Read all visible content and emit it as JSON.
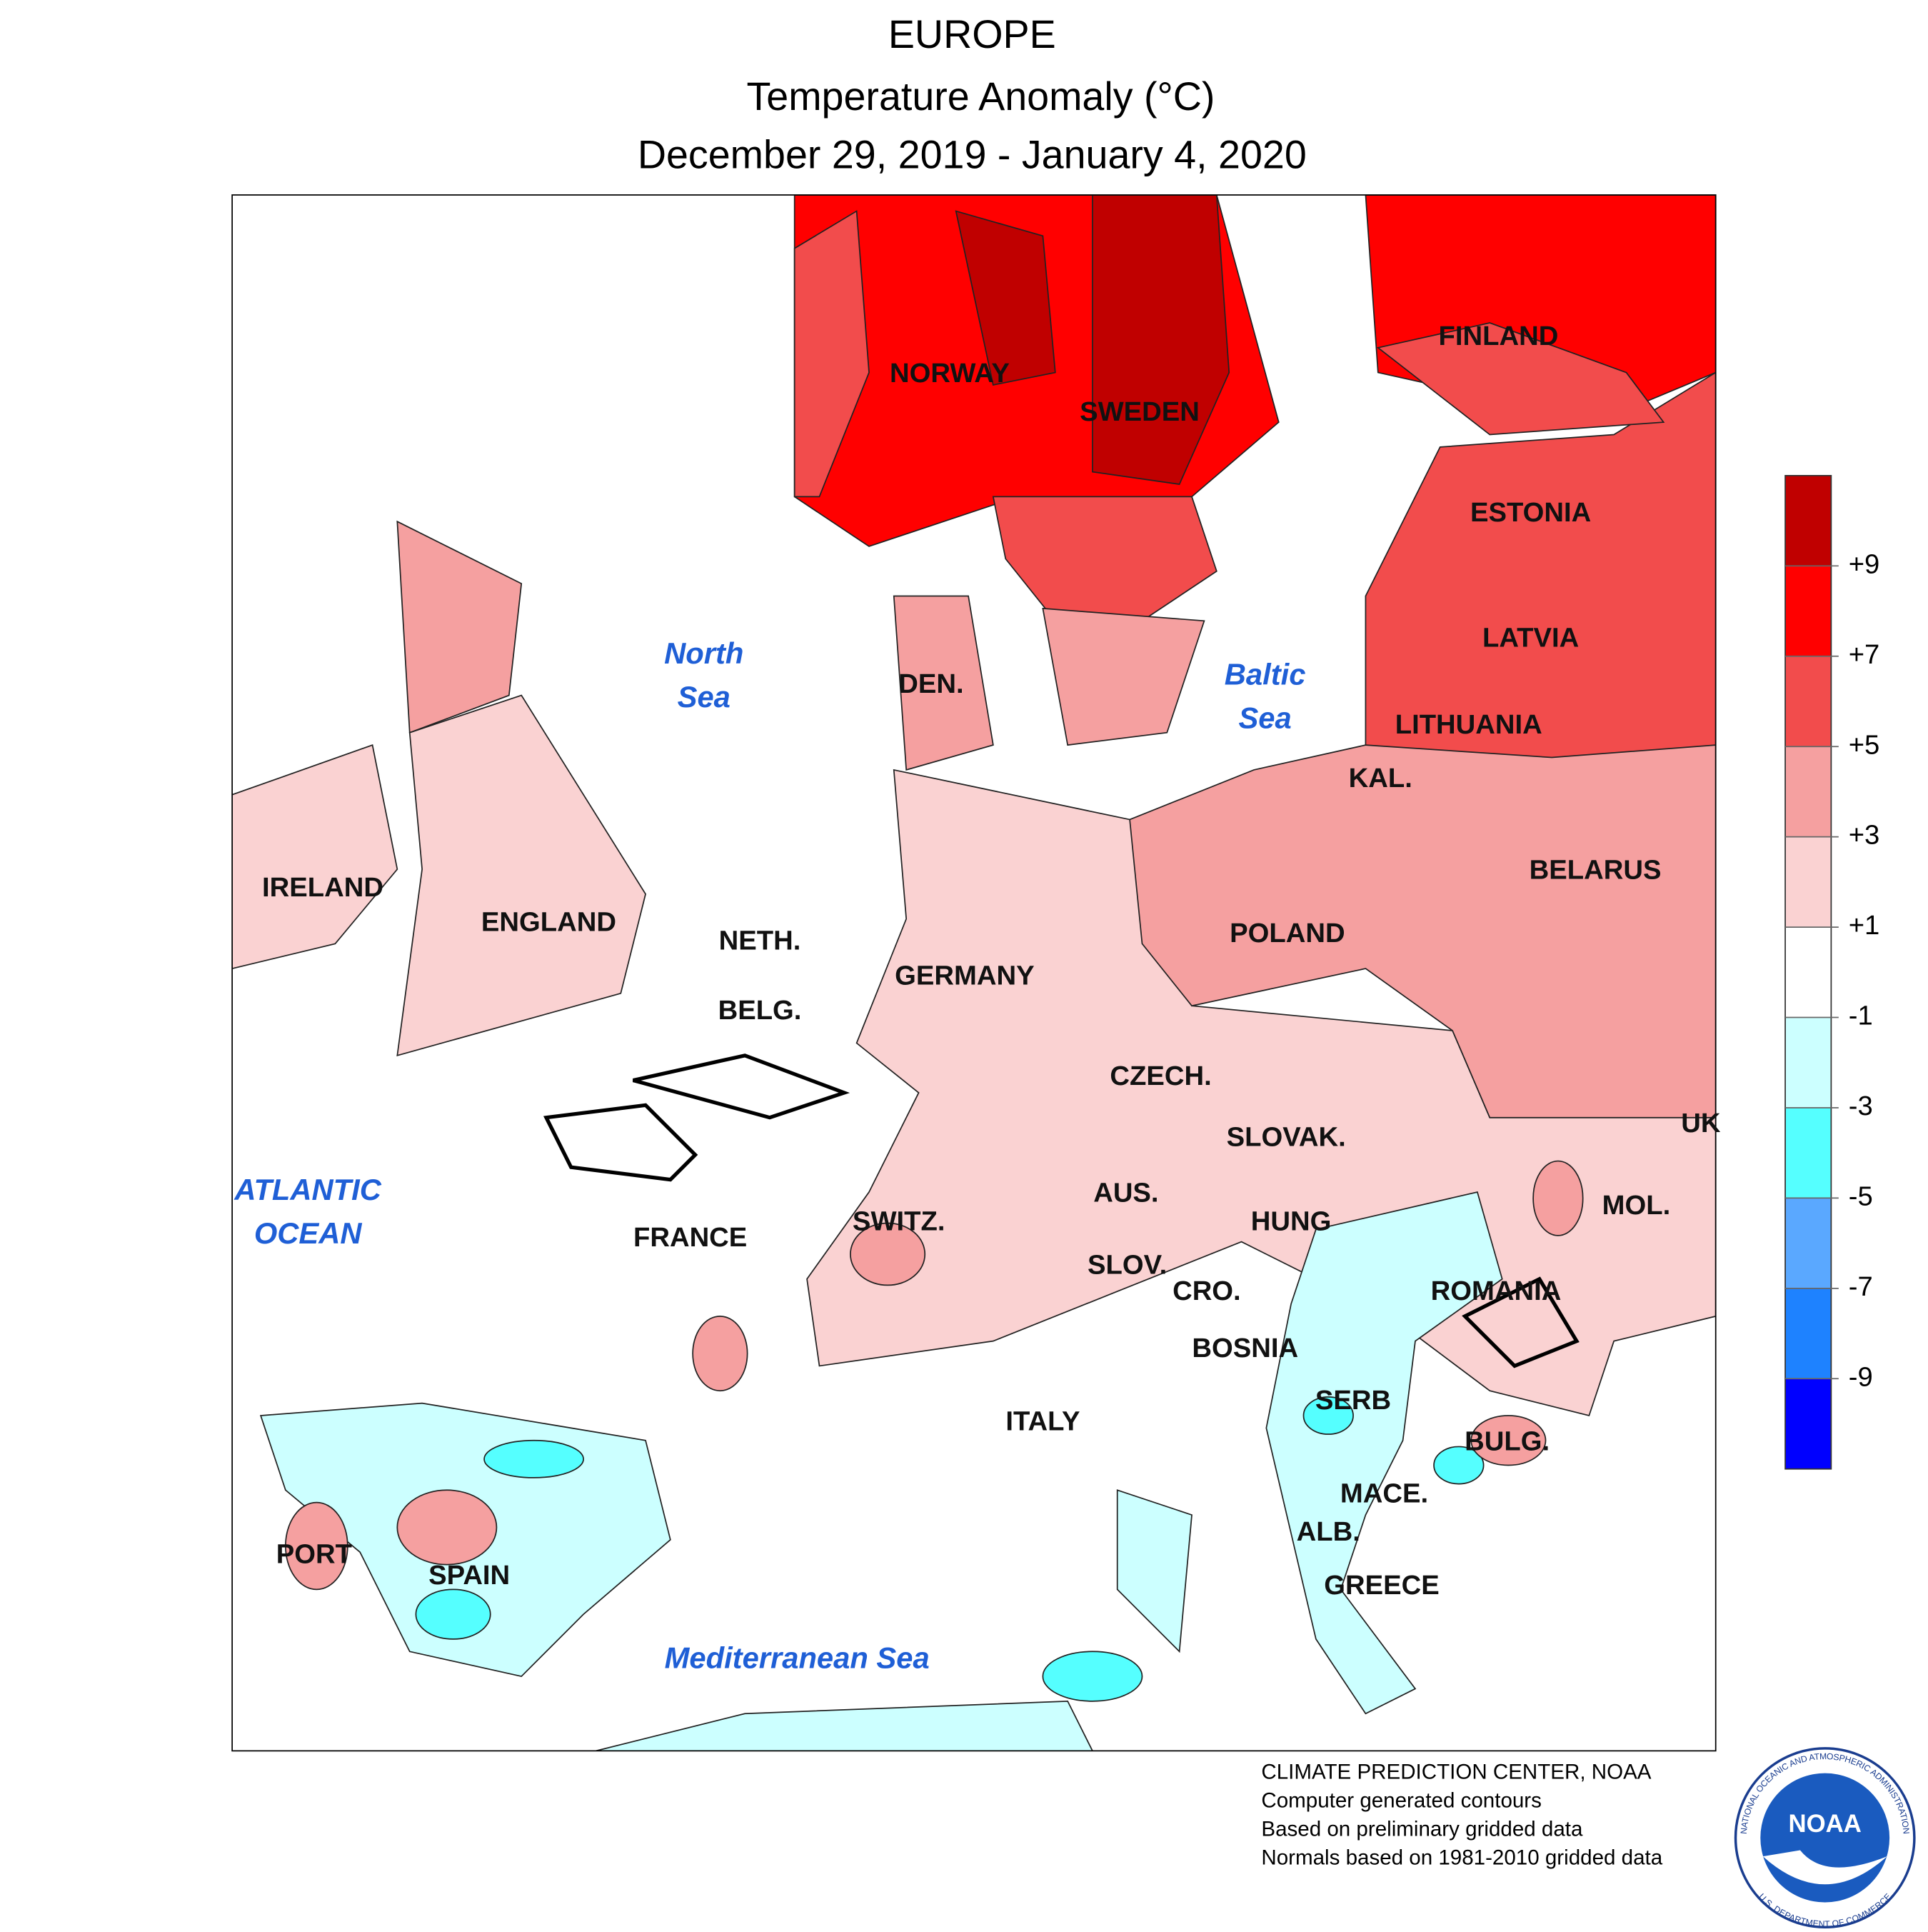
{
  "header": {
    "title": "EUROPE",
    "subtitle": "Temperature Anomaly (°C)",
    "period": "December 29, 2019 - January 4, 2020"
  },
  "map": {
    "countries": [
      "NORWAY",
      "SWEDEN",
      "FINLAND",
      "ESTONIA",
      "LATVIA",
      "LITHUANIA",
      "KAL.",
      "BELARUS",
      "POLAND",
      "IRELAND",
      "ENGLAND",
      "NETH.",
      "GERMANY",
      "BELG.",
      "DEN.",
      "CZECH.",
      "SLOVAK.",
      "AUS.",
      "HUNG",
      "MOL.",
      "UK",
      "FRANCE",
      "SWITZ.",
      "SLOV.",
      "CRO.",
      "ROMANIA",
      "BOSNIA",
      "SERB",
      "BULG.",
      "ITALY",
      "MACE.",
      "ALB.",
      "GREECE",
      "PORT",
      "SPAIN"
    ],
    "seas": [
      [
        "North",
        "Sea"
      ],
      [
        "Baltic",
        "Sea"
      ],
      [
        "ATLANTIC",
        "OCEAN"
      ],
      [
        "Mediterranean Sea"
      ]
    ]
  },
  "legend": {
    "clim": [
      -11,
      11
    ],
    "ticks": [
      {
        "value": 9,
        "label": "+9"
      },
      {
        "value": 7,
        "label": "+7"
      },
      {
        "value": 5,
        "label": "+5"
      },
      {
        "value": 3,
        "label": "+3"
      },
      {
        "value": 1,
        "label": "+1"
      },
      -1,
      -3,
      -5,
      -7,
      -9
    ],
    "colors": [
      "#0000ff",
      "#1e82ff",
      "#5aa8ff",
      "#55ffff",
      "#ccffff",
      "#ffffff",
      "#fad2d2",
      "#f5a0a0",
      "#f24c4c",
      "#ff0000",
      "#c00000"
    ]
  },
  "footer": [
    "CLIMATE PREDICTION CENTER, NOAA",
    "Computer generated contours",
    "Based on preliminary gridded data",
    "Normals based on 1981-2010 gridded data"
  ],
  "logo": {
    "name": "NOAA",
    "ring_top": "NATIONAL OCEANIC AND ATMOSPHERIC ADMINISTRATION",
    "ring_bottom": "U.S. DEPARTMENT OF COMMERCE"
  }
}
